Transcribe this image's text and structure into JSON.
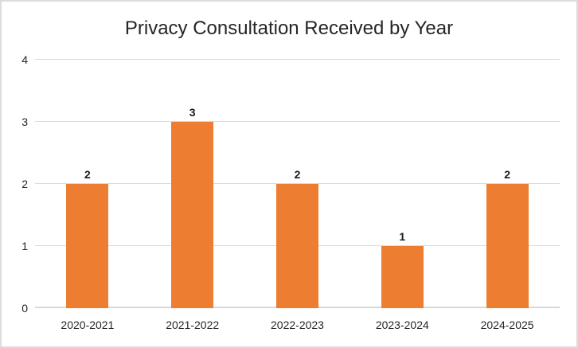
{
  "chart_data": {
    "type": "bar",
    "title": "Privacy Consultation Received by Year",
    "categories": [
      "2020-2021",
      "2021-2022",
      "2022-2023",
      "2023-2024",
      "2024-2025"
    ],
    "values": [
      2,
      3,
      2,
      1,
      2
    ],
    "data_labels": [
      "2",
      "3",
      "2",
      "1",
      "2"
    ],
    "xlabel": "",
    "ylabel": "",
    "ylim": [
      0,
      4
    ],
    "yticks": [
      0,
      1,
      2,
      3,
      4
    ],
    "grid": "horizontal",
    "legend_position": "none",
    "colors": {
      "bar": "#ED7D31",
      "gridline": "#D9D9D9",
      "frame_border": "#DCDCDC",
      "text": "#262626",
      "background": "#FFFFFF"
    }
  }
}
